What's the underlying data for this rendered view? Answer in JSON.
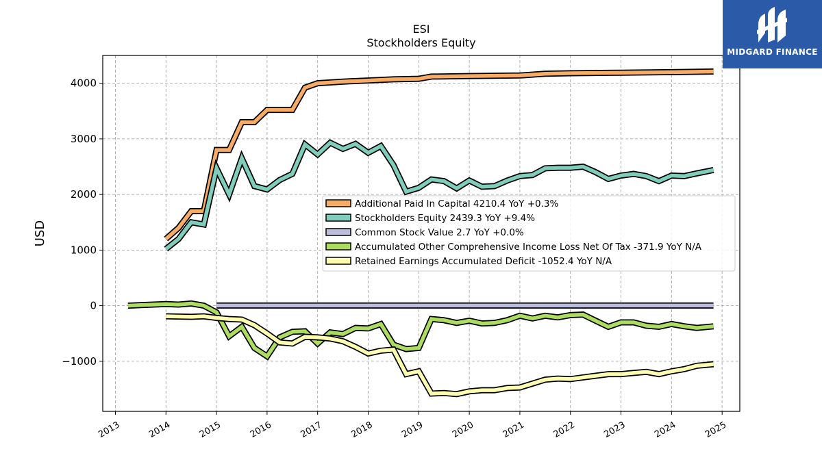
{
  "chart_data": {
    "type": "line",
    "title": "ESI",
    "subtitle": "Stockholders  Equity",
    "ylabel": "USD",
    "xlabel": "",
    "xlim": [
      2012.75,
      2025.35
    ],
    "ylim": [
      -1900,
      4500
    ],
    "x_ticks": [
      2013,
      2014,
      2015,
      2016,
      2017,
      2018,
      2019,
      2020,
      2021,
      2022,
      2023,
      2024,
      2025
    ],
    "x_tick_labels": [
      "2013",
      "2014",
      "2015",
      "2016",
      "2017",
      "2018",
      "2019",
      "2020",
      "2021",
      "2022",
      "2023",
      "2024",
      "2025"
    ],
    "y_ticks": [
      -1000,
      0,
      1000,
      2000,
      3000,
      4000
    ],
    "y_tick_labels": [
      "−1000",
      "0",
      "1000",
      "2000",
      "3000",
      "4000"
    ],
    "grid": true,
    "legend_position": "center-right",
    "series": [
      {
        "name": "Additional Paid In Capital",
        "legend_label": "Additional Paid In Capital  4210.4 YoY +0.3%",
        "color": "#f6ac66",
        "points": [
          [
            2014.0,
            1200
          ],
          [
            2014.25,
            1400
          ],
          [
            2014.5,
            1700
          ],
          [
            2014.75,
            1700
          ],
          [
            2015.0,
            2800
          ],
          [
            2015.25,
            2800
          ],
          [
            2015.5,
            3300
          ],
          [
            2015.75,
            3300
          ],
          [
            2016.0,
            3520
          ],
          [
            2016.5,
            3520
          ],
          [
            2016.75,
            3920
          ],
          [
            2017.0,
            4000
          ],
          [
            2017.5,
            4030
          ],
          [
            2018.0,
            4050
          ],
          [
            2018.5,
            4070
          ],
          [
            2019.0,
            4080
          ],
          [
            2019.25,
            4120
          ],
          [
            2020.0,
            4130
          ],
          [
            2021.0,
            4140
          ],
          [
            2021.5,
            4170
          ],
          [
            2022.0,
            4180
          ],
          [
            2023.0,
            4190
          ],
          [
            2024.0,
            4200
          ],
          [
            2024.83,
            4210.4
          ]
        ]
      },
      {
        "name": "Stockholders Equity",
        "legend_label": "Stockholders Equity  2439.3 YoY +9.4%",
        "color": "#7fcdbb",
        "points": [
          [
            2014.0,
            1020
          ],
          [
            2014.25,
            1200
          ],
          [
            2014.5,
            1500
          ],
          [
            2014.75,
            1460
          ],
          [
            2015.0,
            2470
          ],
          [
            2015.25,
            2000
          ],
          [
            2015.5,
            2650
          ],
          [
            2015.75,
            2150
          ],
          [
            2016.0,
            2090
          ],
          [
            2016.25,
            2260
          ],
          [
            2016.5,
            2370
          ],
          [
            2016.75,
            2900
          ],
          [
            2017.0,
            2720
          ],
          [
            2017.25,
            2930
          ],
          [
            2017.5,
            2820
          ],
          [
            2017.75,
            2910
          ],
          [
            2018.0,
            2750
          ],
          [
            2018.25,
            2870
          ],
          [
            2018.5,
            2530
          ],
          [
            2018.75,
            2050
          ],
          [
            2019.0,
            2120
          ],
          [
            2019.25,
            2270
          ],
          [
            2019.5,
            2240
          ],
          [
            2019.75,
            2110
          ],
          [
            2020.0,
            2250
          ],
          [
            2020.25,
            2140
          ],
          [
            2020.5,
            2150
          ],
          [
            2020.75,
            2250
          ],
          [
            2021.0,
            2330
          ],
          [
            2021.25,
            2350
          ],
          [
            2021.5,
            2470
          ],
          [
            2021.75,
            2480
          ],
          [
            2022.0,
            2480
          ],
          [
            2022.25,
            2500
          ],
          [
            2022.5,
            2400
          ],
          [
            2022.75,
            2280
          ],
          [
            2023.0,
            2340
          ],
          [
            2023.25,
            2370
          ],
          [
            2023.5,
            2330
          ],
          [
            2023.75,
            2240
          ],
          [
            2024.0,
            2340
          ],
          [
            2024.25,
            2330
          ],
          [
            2024.5,
            2380
          ],
          [
            2024.83,
            2439.3
          ]
        ]
      },
      {
        "name": "Common Stock Value",
        "legend_label": "Common Stock Value  2.7 YoY +0.0%",
        "color": "#bcbddc",
        "points": [
          [
            2015.0,
            2.7
          ],
          [
            2024.83,
            2.7
          ]
        ]
      },
      {
        "name": "Accumulated Other Comprehensive Income Loss Net Of Tax",
        "legend_label": "Accumulated Other Comprehensive Income Loss Net Of Tax  -371.9 YoY N/A",
        "color": "#addd60",
        "points": [
          [
            2013.25,
            0
          ],
          [
            2013.5,
            10
          ],
          [
            2013.75,
            20
          ],
          [
            2014.0,
            30
          ],
          [
            2014.25,
            20
          ],
          [
            2014.5,
            40
          ],
          [
            2014.75,
            0
          ],
          [
            2015.0,
            -120
          ],
          [
            2015.25,
            -550
          ],
          [
            2015.5,
            -380
          ],
          [
            2015.75,
            -760
          ],
          [
            2016.0,
            -910
          ],
          [
            2016.25,
            -570
          ],
          [
            2016.5,
            -470
          ],
          [
            2016.75,
            -460
          ],
          [
            2017.0,
            -680
          ],
          [
            2017.25,
            -480
          ],
          [
            2017.5,
            -510
          ],
          [
            2017.75,
            -400
          ],
          [
            2018.0,
            -410
          ],
          [
            2018.25,
            -330
          ],
          [
            2018.5,
            -700
          ],
          [
            2018.75,
            -780
          ],
          [
            2019.0,
            -760
          ],
          [
            2019.25,
            -240
          ],
          [
            2019.5,
            -260
          ],
          [
            2019.75,
            -310
          ],
          [
            2020.0,
            -270
          ],
          [
            2020.25,
            -320
          ],
          [
            2020.5,
            -310
          ],
          [
            2020.75,
            -260
          ],
          [
            2021.0,
            -180
          ],
          [
            2021.25,
            -230
          ],
          [
            2021.5,
            -180
          ],
          [
            2021.75,
            -210
          ],
          [
            2022.0,
            -170
          ],
          [
            2022.25,
            -160
          ],
          [
            2022.5,
            -270
          ],
          [
            2022.75,
            -380
          ],
          [
            2023.0,
            -300
          ],
          [
            2023.25,
            -300
          ],
          [
            2023.5,
            -360
          ],
          [
            2023.75,
            -380
          ],
          [
            2024.0,
            -330
          ],
          [
            2024.25,
            -370
          ],
          [
            2024.5,
            -400
          ],
          [
            2024.83,
            -371.9
          ]
        ]
      },
      {
        "name": "Retained Earnings Accumulated Deficit",
        "legend_label": "Retained Earnings Accumulated Deficit  -1052.4 YoY N/A",
        "color": "#ffffb2",
        "points": [
          [
            2014.0,
            -190
          ],
          [
            2014.5,
            -200
          ],
          [
            2014.75,
            -190
          ],
          [
            2015.0,
            -220
          ],
          [
            2015.25,
            -240
          ],
          [
            2015.5,
            -250
          ],
          [
            2015.75,
            -350
          ],
          [
            2016.0,
            -500
          ],
          [
            2016.25,
            -660
          ],
          [
            2016.5,
            -680
          ],
          [
            2016.75,
            -560
          ],
          [
            2017.0,
            -570
          ],
          [
            2017.25,
            -590
          ],
          [
            2017.5,
            -640
          ],
          [
            2017.75,
            -740
          ],
          [
            2018.0,
            -860
          ],
          [
            2018.25,
            -810
          ],
          [
            2018.5,
            -790
          ],
          [
            2018.75,
            -1230
          ],
          [
            2019.0,
            -1180
          ],
          [
            2019.25,
            -1580
          ],
          [
            2019.5,
            -1570
          ],
          [
            2019.75,
            -1590
          ],
          [
            2020.0,
            -1540
          ],
          [
            2020.25,
            -1520
          ],
          [
            2020.5,
            -1520
          ],
          [
            2020.75,
            -1480
          ],
          [
            2021.0,
            -1470
          ],
          [
            2021.25,
            -1400
          ],
          [
            2021.5,
            -1330
          ],
          [
            2021.75,
            -1310
          ],
          [
            2022.0,
            -1320
          ],
          [
            2022.25,
            -1290
          ],
          [
            2022.5,
            -1260
          ],
          [
            2022.75,
            -1230
          ],
          [
            2023.0,
            -1230
          ],
          [
            2023.25,
            -1210
          ],
          [
            2023.5,
            -1190
          ],
          [
            2023.75,
            -1230
          ],
          [
            2024.0,
            -1180
          ],
          [
            2024.25,
            -1140
          ],
          [
            2024.5,
            -1080
          ],
          [
            2024.83,
            -1052.4
          ]
        ]
      }
    ]
  },
  "logo": {
    "brand": "MIDGARD FINANCE",
    "colors": {
      "background": "#2a5aa8",
      "mark": "#ffffff"
    }
  }
}
